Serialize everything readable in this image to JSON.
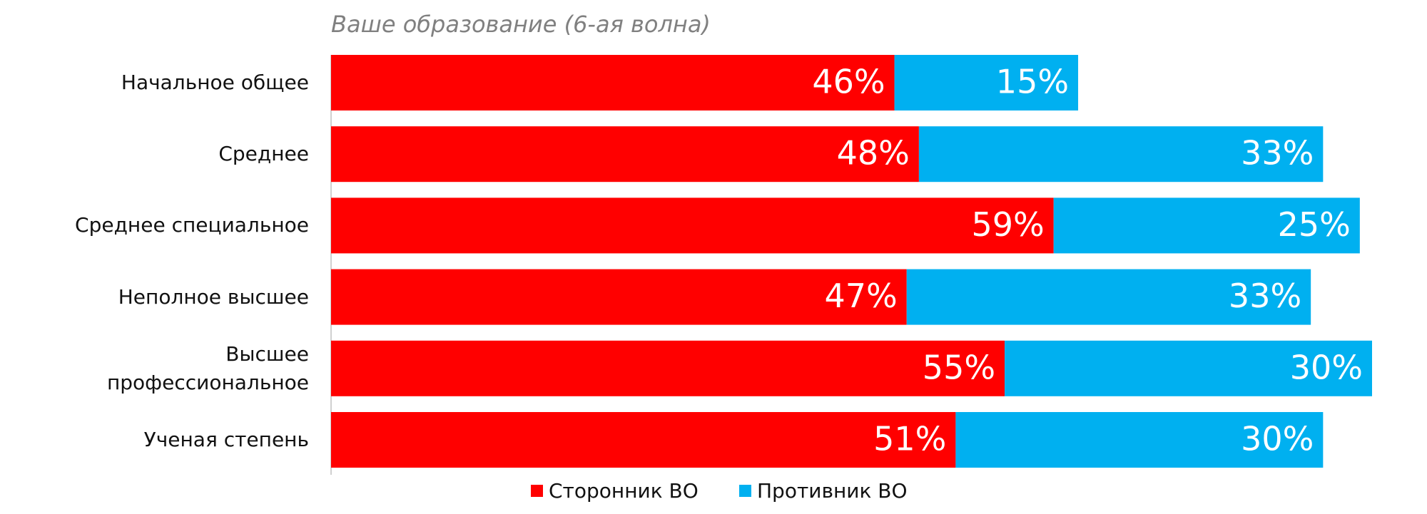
{
  "chart_data": {
    "type": "stacked-bar-horizontal",
    "title": "Ваше образование (6-ая волна)",
    "categories": [
      "Начальное общее",
      "Среднее",
      "Среднее специальное",
      "Неполное высшее",
      "Высшее профессиональное",
      "Ученая степень"
    ],
    "series": [
      {
        "name": "Сторонник ВО",
        "color": "#ff0000",
        "values": [
          46,
          48,
          59,
          47,
          55,
          51
        ],
        "value_labels": [
          "46%",
          "48%",
          "59%",
          "47%",
          "55%",
          "51%"
        ]
      },
      {
        "name": "Противник ВО",
        "color": "#00b0f0",
        "values": [
          15,
          33,
          25,
          33,
          30,
          30
        ],
        "value_labels": [
          "15%",
          "33%",
          "25%",
          "33%",
          "30%",
          "30%"
        ]
      }
    ]
  }
}
